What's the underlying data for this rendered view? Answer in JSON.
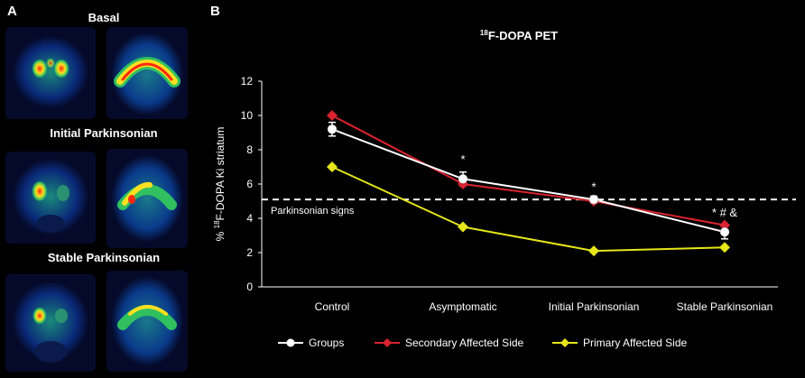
{
  "panel_a": {
    "label": "A",
    "rows": [
      {
        "title": "Basal"
      },
      {
        "title": "Initial Parkinsonian"
      },
      {
        "title": "Stable Parkinsonian"
      }
    ]
  },
  "panel_b": {
    "label": "B"
  },
  "chart_data": {
    "type": "line",
    "title_sup": "18",
    "title_main": "F-DOPA PET",
    "ylabel_prefix": "% ",
    "ylabel_sup": "18",
    "ylabel_main": "F-DOPA Ki striatum",
    "ylim": [
      0,
      12
    ],
    "yticks": [
      "0",
      "2",
      "4",
      "6",
      "8",
      "10",
      "12"
    ],
    "categories": [
      "Control",
      "Asymptomatic",
      "Initial Parkinsonian",
      "Stable Parkinsonian"
    ],
    "series": [
      {
        "name": "Groups",
        "color": "#ffffff",
        "marker": "circle",
        "values": [
          9.2,
          6.3,
          5.1,
          3.2
        ],
        "errors": [
          0.4,
          0.4,
          0.2,
          0.4
        ]
      },
      {
        "name": "Secondary Affected Side",
        "color": "#d9232e",
        "marker": "diamond",
        "values": [
          10.0,
          6.0,
          5.0,
          3.6
        ]
      },
      {
        "name": "Primary Affected Side",
        "color": "#e6e61a",
        "marker": "diamond",
        "values": [
          7.0,
          3.5,
          2.1,
          2.3
        ]
      }
    ],
    "threshold": {
      "value": 5.1,
      "label": "Parkinsonian signs"
    },
    "annotations": [
      {
        "category": 1,
        "value": 7.2,
        "text": "*"
      },
      {
        "category": 2,
        "value": 5.6,
        "text": "*"
      },
      {
        "category": 3,
        "value": 4.1,
        "text": "*  #  &"
      }
    ],
    "grid": false,
    "legend": "bottom"
  }
}
